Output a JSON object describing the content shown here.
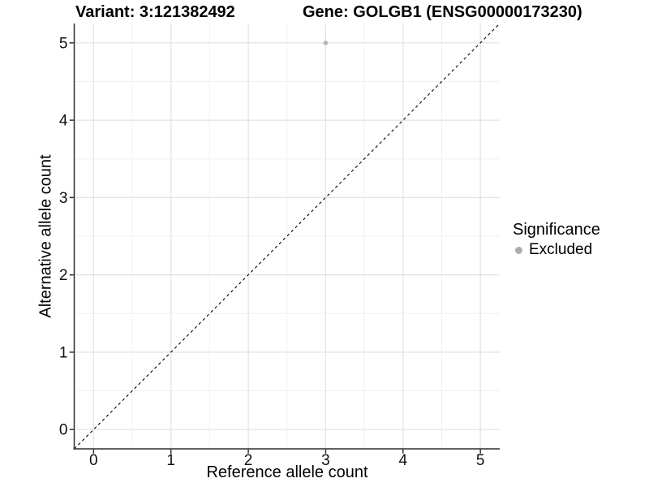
{
  "figure": {
    "title_left": "Variant: 3:121382492",
    "title_right": "Gene: GOLGB1 (ENSG00000173230)"
  },
  "chart_data": {
    "type": "scatter",
    "title": "Variant: 3:121382492   Gene: GOLGB1 (ENSG00000173230)",
    "xlabel": "Reference allele count",
    "ylabel": "Alternative allele count",
    "xlim": [
      -0.25,
      5.25
    ],
    "ylim": [
      -0.25,
      5.25
    ],
    "x_ticks": [
      0,
      1,
      2,
      3,
      4,
      5
    ],
    "y_ticks": [
      0,
      1,
      2,
      3,
      4,
      5
    ],
    "grid": {
      "major": true,
      "minor": true,
      "minor_step": 0.5,
      "major_color": "#e2e2e2",
      "minor_color": "#f0f0f0"
    },
    "series": [
      {
        "name": "Excluded",
        "color": "#b5b5b5",
        "points": [
          {
            "x": 3,
            "y": 5
          }
        ]
      }
    ],
    "reference_line": {
      "type": "identity",
      "x1": -0.25,
      "y1": -0.25,
      "x2": 5.25,
      "y2": 5.25,
      "style": "dashed",
      "color": "#000000"
    },
    "legend": {
      "title": "Significance",
      "position": "right",
      "items": [
        {
          "label": "Excluded",
          "color": "#adadad",
          "marker": "circle"
        }
      ]
    },
    "axis_color": "#2e2e2e",
    "tick_label_color": "#111111"
  }
}
